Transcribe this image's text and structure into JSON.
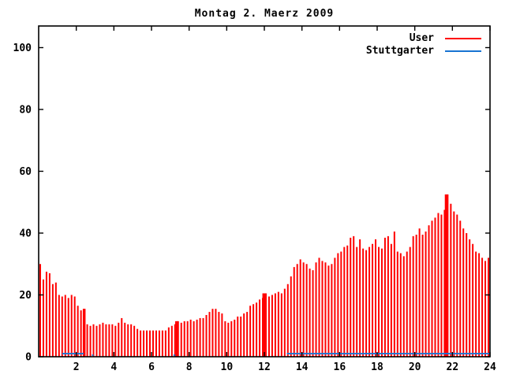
{
  "chart_data": {
    "type": "bar",
    "title": "Montag 2. Maerz 2009",
    "xlabel": "",
    "ylabel": "",
    "xlim": [
      0,
      24
    ],
    "ylim": [
      0,
      107
    ],
    "x_ticks": [
      2,
      4,
      6,
      8,
      10,
      12,
      14,
      16,
      18,
      20,
      22,
      24
    ],
    "y_ticks": [
      0,
      20,
      40,
      60,
      80,
      100
    ],
    "grid": false,
    "legend_position": "inside-top-right",
    "sample_interval_minutes": 10,
    "series": [
      {
        "name": "User",
        "color": "#ff0000",
        "style": "impulses",
        "values": [
          30,
          25,
          27.5,
          27,
          23.5,
          24,
          20,
          19.5,
          20,
          19,
          20,
          19.5,
          16.5,
          15,
          15.5,
          10.5,
          10,
          10.5,
          10,
          10.5,
          11,
          10.5,
          10.5,
          10.5,
          10,
          11,
          12.5,
          11,
          10.5,
          10.5,
          10,
          9,
          8.5,
          8.5,
          8.5,
          8.5,
          8.5,
          8.5,
          8.5,
          8.5,
          8.5,
          9.5,
          10,
          10.5,
          11.5,
          11,
          11.5,
          11.5,
          12,
          11.5,
          12,
          12.5,
          12.5,
          13.5,
          14.5,
          15.5,
          15.5,
          14.5,
          14,
          11.5,
          11,
          11.5,
          12,
          13,
          13,
          14,
          14.5,
          16.5,
          17,
          17.5,
          18.5,
          19,
          20.5,
          19.5,
          20,
          20.5,
          21,
          20.5,
          22,
          23.5,
          26,
          29,
          30,
          31.5,
          30.5,
          30,
          28.5,
          28,
          30.5,
          32,
          31,
          30.5,
          29.5,
          30,
          32,
          33.5,
          34,
          35.5,
          36,
          38.5,
          39,
          35.5,
          38,
          35,
          34.5,
          35.5,
          36.5,
          38,
          35.5,
          35,
          38.5,
          39,
          36.5,
          40.5,
          34,
          33.5,
          32.5,
          34,
          35.5,
          39,
          39.5,
          41.5,
          39.5,
          40.5,
          42.5,
          44,
          45,
          46.5,
          46,
          47.5,
          52.5,
          49.5,
          47,
          46,
          44,
          41.5,
          40,
          38,
          36.5,
          34,
          33.5,
          32,
          31,
          32
        ],
        "spikes": [
          {
            "hour": 2.42,
            "value": 15.5
          },
          {
            "hour": 7.33,
            "value": 11.5
          },
          {
            "hour": 11.97,
            "value": 20.5
          },
          {
            "hour": 21.67,
            "value": 52.5
          }
        ]
      },
      {
        "name": "Stuttgarter",
        "color": "#1874d2",
        "style": "lines",
        "segments": [
          {
            "from": 1.25,
            "to": 2.4,
            "value": 1
          },
          {
            "from": 2.83,
            "to": 2.92,
            "value": 0.5
          },
          {
            "from": 7.17,
            "to": 7.27,
            "value": 0.5
          },
          {
            "from": 13.2,
            "to": 24,
            "value": 1
          }
        ]
      }
    ]
  },
  "legend": {
    "user_label": "User",
    "stuttgarter_label": "Stuttgarter"
  }
}
